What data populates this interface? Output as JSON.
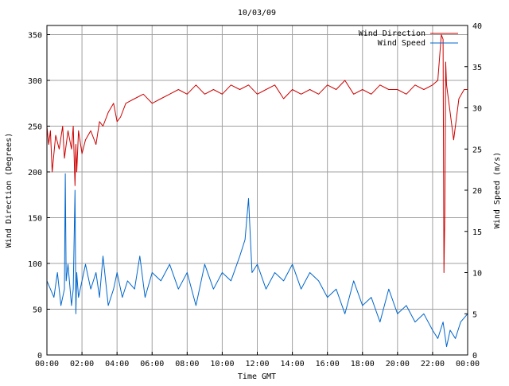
{
  "chart_data": {
    "type": "line",
    "title": "10/03/09",
    "xlabel": "Time GMT",
    "ylabel_left": "Wind Direction (Degrees)",
    "ylabel_right": "Wind Speed (m/s)",
    "x_unit": "hours GMT",
    "xlim": [
      0,
      24
    ],
    "ylim_left": [
      0,
      360
    ],
    "ylim_right": [
      0,
      40
    ],
    "x_ticks": [
      {
        "value": 0,
        "label": "00:00"
      },
      {
        "value": 2,
        "label": "02:00"
      },
      {
        "value": 4,
        "label": "04:00"
      },
      {
        "value": 6,
        "label": "06:00"
      },
      {
        "value": 8,
        "label": "08:00"
      },
      {
        "value": 10,
        "label": "10:00"
      },
      {
        "value": 12,
        "label": "12:00"
      },
      {
        "value": 14,
        "label": "14:00"
      },
      {
        "value": 16,
        "label": "16:00"
      },
      {
        "value": 18,
        "label": "18:00"
      },
      {
        "value": 20,
        "label": "20:00"
      },
      {
        "value": 22,
        "label": "22:00"
      },
      {
        "value": 24,
        "label": "00:00"
      }
    ],
    "y_ticks_left": [
      {
        "value": 0,
        "label": "0"
      },
      {
        "value": 50,
        "label": "50"
      },
      {
        "value": 100,
        "label": "100"
      },
      {
        "value": 150,
        "label": "150"
      },
      {
        "value": 200,
        "label": "200"
      },
      {
        "value": 250,
        "label": "250"
      },
      {
        "value": 300,
        "label": "300"
      },
      {
        "value": 350,
        "label": "350"
      }
    ],
    "y_ticks_right": [
      {
        "value": 0,
        "label": "0"
      },
      {
        "value": 5,
        "label": "5"
      },
      {
        "value": 10,
        "label": "10"
      },
      {
        "value": 15,
        "label": "15"
      },
      {
        "value": 20,
        "label": "20"
      },
      {
        "value": 25,
        "label": "25"
      },
      {
        "value": 30,
        "label": "30"
      },
      {
        "value": 35,
        "label": "35"
      },
      {
        "value": 40,
        "label": "40"
      }
    ],
    "grid": true,
    "legend_position": "top-right",
    "series": [
      {
        "name": "Wind Direction",
        "axis": "left",
        "color": "#cc0000",
        "x": [
          0,
          0.1,
          0.2,
          0.3,
          0.5,
          0.7,
          0.9,
          1.0,
          1.2,
          1.4,
          1.5,
          1.6,
          1.65,
          1.7,
          1.8,
          2.0,
          2.2,
          2.5,
          2.8,
          3.0,
          3.2,
          3.5,
          3.8,
          4.0,
          4.2,
          4.5,
          5.0,
          5.5,
          6.0,
          6.5,
          7.0,
          7.5,
          8.0,
          8.5,
          9.0,
          9.5,
          10.0,
          10.5,
          11.0,
          11.5,
          12.0,
          12.5,
          13.0,
          13.5,
          14.0,
          14.5,
          15.0,
          15.5,
          16.0,
          16.5,
          17.0,
          17.5,
          18.0,
          18.5,
          19.0,
          19.5,
          20.0,
          20.5,
          21.0,
          21.5,
          22.0,
          22.3,
          22.5,
          22.6,
          22.65,
          22.7,
          22.75,
          22.8,
          23.0,
          23.2,
          23.5,
          23.8,
          24.0
        ],
        "y": [
          250,
          230,
          245,
          200,
          240,
          225,
          250,
          215,
          245,
          225,
          250,
          185,
          230,
          200,
          245,
          220,
          235,
          245,
          230,
          255,
          250,
          265,
          275,
          255,
          260,
          275,
          280,
          285,
          275,
          280,
          285,
          290,
          285,
          295,
          285,
          290,
          285,
          295,
          290,
          295,
          285,
          290,
          295,
          280,
          290,
          285,
          290,
          285,
          295,
          290,
          300,
          285,
          290,
          285,
          295,
          290,
          290,
          285,
          295,
          290,
          295,
          300,
          350,
          345,
          90,
          155,
          320,
          295,
          265,
          235,
          280,
          290,
          290
        ]
      },
      {
        "name": "Wind Speed",
        "axis": "right",
        "color": "#0066cc",
        "x": [
          0,
          0.2,
          0.4,
          0.6,
          0.8,
          1.0,
          1.05,
          1.1,
          1.2,
          1.4,
          1.5,
          1.6,
          1.65,
          1.7,
          1.8,
          2.0,
          2.2,
          2.5,
          2.8,
          3.0,
          3.2,
          3.5,
          3.8,
          4.0,
          4.3,
          4.6,
          5.0,
          5.3,
          5.6,
          6.0,
          6.5,
          7.0,
          7.5,
          8.0,
          8.5,
          9.0,
          9.5,
          10.0,
          10.5,
          11.0,
          11.3,
          11.5,
          11.7,
          12.0,
          12.5,
          13.0,
          13.5,
          14.0,
          14.5,
          15.0,
          15.5,
          16.0,
          16.5,
          17.0,
          17.5,
          18.0,
          18.5,
          19.0,
          19.5,
          20.0,
          20.5,
          21.0,
          21.5,
          22.0,
          22.3,
          22.6,
          22.8,
          23.0,
          23.3,
          23.6,
          24.0
        ],
        "y": [
          9,
          8,
          7,
          10,
          6,
          8,
          22,
          9,
          11,
          6,
          8,
          20,
          5,
          10,
          7,
          9,
          11,
          8,
          10,
          7,
          12,
          6,
          8,
          10,
          7,
          9,
          8,
          12,
          7,
          10,
          9,
          11,
          8,
          10,
          6,
          11,
          8,
          10,
          9,
          12,
          14,
          19,
          10,
          11,
          8,
          10,
          9,
          11,
          8,
          10,
          9,
          7,
          8,
          5,
          9,
          6,
          7,
          4,
          8,
          5,
          6,
          4,
          5,
          3,
          2,
          4,
          1,
          3,
          2,
          4,
          5
        ]
      }
    ]
  }
}
